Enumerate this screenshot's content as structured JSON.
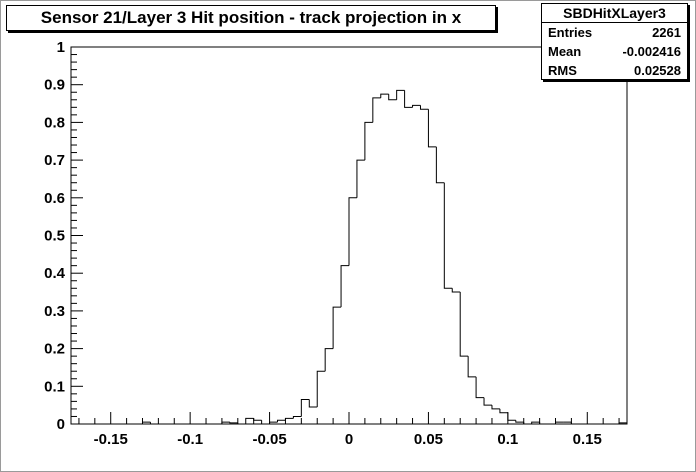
{
  "chart_data": {
    "type": "histogram",
    "title": "Sensor 21/Layer 3 Hit position - track projection in x",
    "xlabel": "",
    "ylabel": "",
    "xlim": [
      -0.175,
      0.175
    ],
    "ylim": [
      0,
      1
    ],
    "x_ticks": [
      "-0.15",
      "-0.1",
      "-0.05",
      "0",
      "0.05",
      "0.1",
      "0.15"
    ],
    "x_tick_values": [
      -0.15,
      -0.1,
      -0.05,
      0,
      0.05,
      0.1,
      0.15
    ],
    "y_ticks": [
      "0",
      "0.1",
      "0.2",
      "0.3",
      "0.4",
      "0.5",
      "0.6",
      "0.7",
      "0.8",
      "0.9",
      "1"
    ],
    "y_tick_values": [
      0,
      0.1,
      0.2,
      0.3,
      0.4,
      0.5,
      0.6,
      0.7,
      0.8,
      0.9,
      1
    ],
    "bin_start": -0.175,
    "bin_width": 0.005,
    "values": [
      0,
      0,
      0,
      0,
      0,
      0,
      0,
      0,
      0,
      0.005,
      0,
      0,
      0,
      0,
      0,
      0,
      0,
      0,
      0,
      0.005,
      0.003,
      0,
      0.015,
      0.01,
      0,
      0.005,
      0.01,
      0.015,
      0.02,
      0.065,
      0.045,
      0.14,
      0.2,
      0.31,
      0.42,
      0.6,
      0.7,
      0.8,
      0.865,
      0.875,
      0.86,
      0.885,
      0.84,
      0.845,
      0.835,
      0.735,
      0.64,
      0.36,
      0.35,
      0.18,
      0.125,
      0.07,
      0.05,
      0.04,
      0.03,
      0.01,
      0.005,
      0,
      0.005,
      0,
      0,
      0.005,
      0.005,
      0,
      0,
      0,
      0,
      0,
      0,
      0.003
    ],
    "grid": false,
    "legend": "none",
    "line_color": "#000000"
  },
  "stats": {
    "name": "SBDHitXLayer3",
    "entries_label": "Entries",
    "entries_value": "2261",
    "mean_label": "Mean",
    "mean_value": "-0.002416",
    "rms_label": "RMS",
    "rms_value": "0.02528"
  }
}
